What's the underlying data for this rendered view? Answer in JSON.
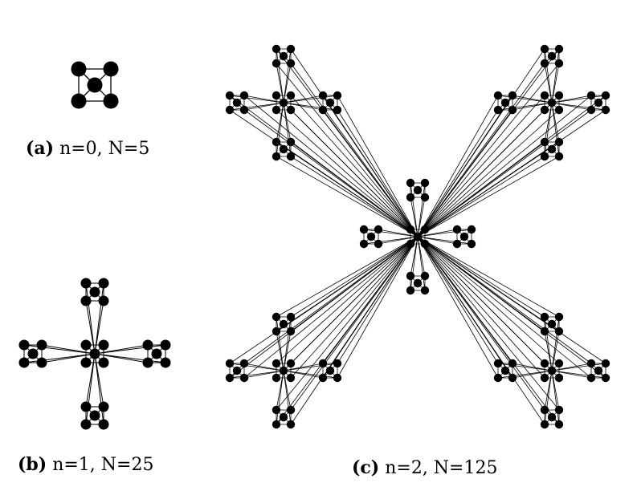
{
  "figure": {
    "panels": [
      {
        "id": "a",
        "label": "(a)",
        "caption": "n=0, N=5",
        "level": 0,
        "nodes": 5
      },
      {
        "id": "b",
        "label": "(b)",
        "caption": "n=1, N=25",
        "level": 1,
        "nodes": 25
      },
      {
        "id": "c",
        "label": "(c)",
        "caption": "n=2, N=125",
        "level": 2,
        "nodes": 125
      }
    ],
    "colors": {
      "node": "#000000",
      "edge": "#000000",
      "background": "#ffffff"
    }
  }
}
